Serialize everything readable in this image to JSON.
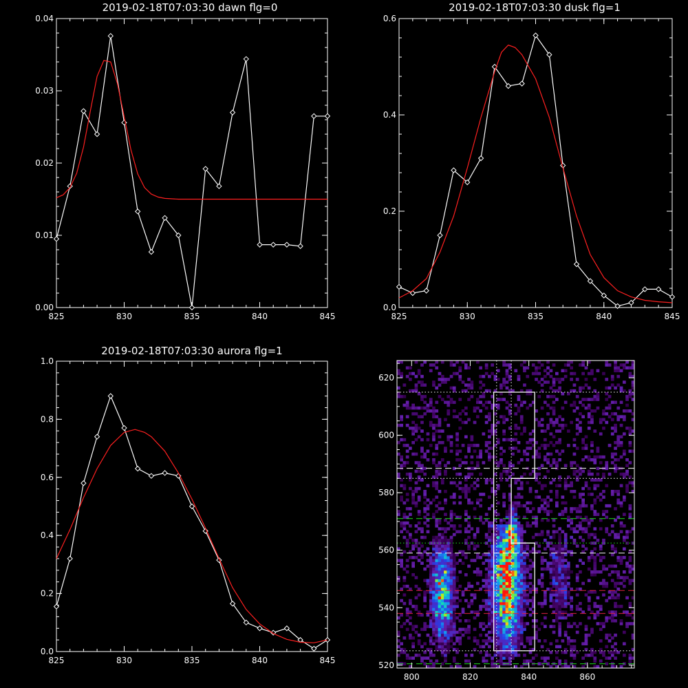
{
  "chart_data": [
    {
      "id": "dawn",
      "type": "line",
      "title": "2019-02-18T07:03:30 dawn flg=0",
      "xlim": [
        825,
        845
      ],
      "ylim": [
        0,
        0.04
      ],
      "xticks": [
        "825",
        "830",
        "835",
        "840",
        "845"
      ],
      "yticks": [
        "0.00",
        "0.01",
        "0.02",
        "0.03",
        "0.04"
      ],
      "series": [
        {
          "style": "line-diamond",
          "color": "#ffffff",
          "x": [
            825,
            826,
            827,
            828,
            829,
            830,
            831,
            832,
            833,
            834,
            835,
            836,
            837,
            838,
            839,
            840,
            841,
            842,
            843,
            844,
            845
          ],
          "y": [
            0.0095,
            0.0168,
            0.0272,
            0.024,
            0.0376,
            0.0256,
            0.0133,
            0.0077,
            0.0124,
            0.01,
            0.0,
            0.0192,
            0.0168,
            0.027,
            0.0344,
            0.0087,
            0.0087,
            0.0087,
            0.0085,
            0.0265,
            0.0265
          ]
        },
        {
          "style": "smooth",
          "color": "#ff2020",
          "x": [
            825.0,
            825.5,
            826.0,
            826.5,
            827.0,
            827.5,
            828.0,
            828.5,
            829.0,
            829.5,
            830.0,
            830.5,
            831.0,
            831.5,
            832.0,
            832.5,
            833.0,
            834.0,
            836.0,
            838.0,
            840.0,
            842.0,
            845.0
          ],
          "y": [
            0.0152,
            0.0156,
            0.0166,
            0.0186,
            0.0222,
            0.0272,
            0.032,
            0.0342,
            0.034,
            0.031,
            0.0264,
            0.0218,
            0.0185,
            0.0166,
            0.0157,
            0.0153,
            0.0151,
            0.015,
            0.015,
            0.015,
            0.015,
            0.015,
            0.015
          ]
        }
      ]
    },
    {
      "id": "dusk",
      "type": "line",
      "title": "2019-02-18T07:03:30 dusk flg=1",
      "xlim": [
        825,
        845
      ],
      "ylim": [
        0,
        0.6
      ],
      "xticks": [
        "825",
        "830",
        "835",
        "840",
        "845"
      ],
      "yticks": [
        "0.0",
        "0.2",
        "0.4",
        "0.6"
      ],
      "series": [
        {
          "style": "line-diamond",
          "color": "#ffffff",
          "x": [
            825,
            826,
            827,
            828,
            829,
            830,
            831,
            832,
            833,
            834,
            835,
            836,
            837,
            838,
            839,
            840,
            841,
            842,
            843,
            844,
            845
          ],
          "y": [
            0.043,
            0.03,
            0.035,
            0.15,
            0.285,
            0.26,
            0.31,
            0.5,
            0.46,
            0.465,
            0.565,
            0.525,
            0.295,
            0.09,
            0.055,
            0.025,
            0.003,
            0.01,
            0.038,
            0.038,
            0.022
          ]
        },
        {
          "style": "smooth",
          "color": "#ff2020",
          "x": [
            825,
            826,
            827,
            828,
            829,
            830,
            831,
            832,
            832.5,
            833,
            833.5,
            834,
            835,
            836,
            837,
            838,
            839,
            840,
            841,
            842,
            843,
            844,
            845
          ],
          "y": [
            0.02,
            0.035,
            0.06,
            0.115,
            0.19,
            0.29,
            0.395,
            0.49,
            0.53,
            0.545,
            0.54,
            0.525,
            0.475,
            0.395,
            0.29,
            0.19,
            0.11,
            0.062,
            0.035,
            0.022,
            0.015,
            0.012,
            0.01
          ]
        }
      ]
    },
    {
      "id": "aurora",
      "type": "line",
      "title": "2019-02-18T07:03:30 aurora flg=1",
      "xlim": [
        825,
        845
      ],
      "ylim": [
        0,
        1.0
      ],
      "xticks": [
        "825",
        "830",
        "835",
        "840",
        "845"
      ],
      "yticks": [
        "0.0",
        "0.2",
        "0.4",
        "0.6",
        "0.8",
        "1.0"
      ],
      "series": [
        {
          "style": "line-diamond",
          "color": "#ffffff",
          "x": [
            825,
            826,
            827,
            828,
            829,
            830,
            831,
            832,
            833,
            834,
            835,
            836,
            837,
            838,
            839,
            840,
            841,
            842,
            843,
            844,
            845
          ],
          "y": [
            0.155,
            0.32,
            0.58,
            0.74,
            0.88,
            0.77,
            0.63,
            0.605,
            0.615,
            0.605,
            0.5,
            0.415,
            0.315,
            0.165,
            0.1,
            0.08,
            0.065,
            0.08,
            0.04,
            0.01,
            0.04
          ]
        },
        {
          "style": "smooth",
          "color": "#ff2020",
          "x": [
            825,
            826,
            827,
            828,
            829,
            830,
            830.8,
            831.5,
            832,
            833,
            834,
            835,
            836,
            837,
            838,
            839,
            840,
            841,
            842,
            843,
            844,
            845
          ],
          "y": [
            0.32,
            0.42,
            0.53,
            0.63,
            0.71,
            0.755,
            0.765,
            0.755,
            0.74,
            0.69,
            0.615,
            0.525,
            0.425,
            0.32,
            0.22,
            0.145,
            0.095,
            0.062,
            0.042,
            0.032,
            0.03,
            0.04
          ]
        }
      ]
    },
    {
      "id": "spectrogram",
      "type": "heatmap",
      "title": "",
      "xlim": [
        795,
        876
      ],
      "ylim": [
        519,
        626
      ],
      "xticks": [
        "800",
        "820",
        "840",
        "860"
      ],
      "yticks": [
        "520",
        "540",
        "560",
        "580",
        "600",
        "620"
      ],
      "colors": {
        "background": "#000000",
        "low": "#5a1a8a",
        "mid": "#1a50e0",
        "high": "#20e0c0",
        "peak": "#ff2010",
        "box": "#ffffff",
        "green_line": "#20e020",
        "red_line": "#e02040"
      },
      "blobs": [
        {
          "xc": 810,
          "yc": 545,
          "sx": 2.4,
          "sy": 11,
          "amp": 0.68,
          "ymin": 522,
          "ymax": 565
        },
        {
          "xc": 832,
          "yc": 548,
          "sx": 3.2,
          "sy": 14,
          "amp": 1.0,
          "ymin": 522,
          "ymax": 568
        },
        {
          "xc": 834,
          "yc": 565,
          "sx": 1.4,
          "sy": 6,
          "amp": 0.5,
          "ymin": 558,
          "ymax": 575
        },
        {
          "xc": 850,
          "yc": 550,
          "sx": 3.0,
          "sy": 12,
          "amp": 0.18,
          "ymin": 520,
          "ymax": 575
        }
      ],
      "box_outline": [
        [
          828,
          525
        ],
        [
          842,
          525
        ],
        [
          842,
          562.5
        ],
        [
          834,
          562.5
        ],
        [
          834,
          585
        ],
        [
          842,
          585
        ],
        [
          842,
          615
        ],
        [
          828,
          615
        ],
        [
          828,
          525
        ]
      ],
      "hlines": [
        {
          "y": 615,
          "style": "dotted",
          "color": "#ffffff"
        },
        {
          "y": 588.5,
          "style": "dashed",
          "color": "#ffffff"
        },
        {
          "y": 585,
          "style": "dotted",
          "color": "#ffffff"
        },
        {
          "y": 571,
          "style": "dashed",
          "color": "#20e020"
        },
        {
          "y": 562.5,
          "style": "dotted",
          "color": "#20e020"
        },
        {
          "y": 559,
          "style": "dashed",
          "color": "#ffffff"
        },
        {
          "y": 546,
          "style": "dashed",
          "color": "#e02040"
        },
        {
          "y": 538,
          "style": "dashed",
          "color": "#e02040"
        },
        {
          "y": 525,
          "style": "dotted",
          "color": "#ffffff"
        },
        {
          "y": 520.5,
          "style": "dashed",
          "color": "#20e020"
        }
      ],
      "vlines": [
        {
          "x": 829,
          "style": "dotted",
          "color": "#ffffff"
        },
        {
          "x": 834,
          "style": "dotted",
          "color": "#ffffff"
        }
      ]
    }
  ]
}
